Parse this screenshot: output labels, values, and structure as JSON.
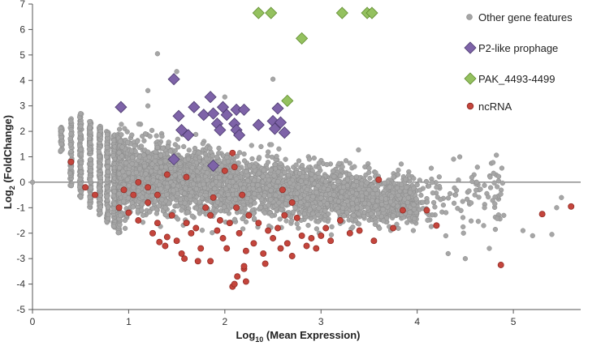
{
  "colors": {
    "other": "#a6a6a6",
    "other_stroke": "#8c8c8c",
    "p2": "#7e63a8",
    "p2_stroke": "#4b3a6e",
    "pak": "#94c15f",
    "pak_stroke": "#5e8a2d",
    "ncrna": "#c4453c",
    "ncrna_stroke": "#8a2620"
  },
  "axes": {
    "x_title_main": "Log",
    "x_title_sub": "10",
    "x_title_rest": " (Mean Expression)",
    "y_title_main": "Log",
    "y_title_sub": "2",
    "y_title_rest": " (FoldChange)"
  },
  "legend": {
    "other": "Other gene features",
    "p2": "P2-like prophage",
    "pak": "PAK_4493-4499",
    "ncrna": "ncRNA"
  },
  "chart_data": {
    "type": "scatter",
    "xlim": [
      0,
      5.7
    ],
    "ylim": [
      -5,
      7
    ],
    "x_ticks": [
      0,
      1,
      2,
      3,
      4,
      5
    ],
    "y_ticks": [
      -5,
      -4,
      -3,
      -2,
      -1,
      0,
      1,
      2,
      3,
      4,
      5,
      6,
      7
    ],
    "grid": false,
    "legend_position": "top-right",
    "series": [
      {
        "name": "Other gene features",
        "marker": "circle",
        "density_description": "dense cloud (~5000 points) spanning x 0.3–4.5, trending from y≈+1..-2.5 at low x toward y≈0..-2 at high x",
        "points": [
          [
            0.0,
            0.0
          ],
          [
            0.3,
            1.5
          ],
          [
            0.3,
            2.0
          ],
          [
            0.4,
            2.4
          ],
          [
            0.4,
            1.9
          ],
          [
            0.5,
            2.7
          ],
          [
            0.5,
            2.2
          ],
          [
            1.2,
            3.0
          ],
          [
            1.3,
            5.05
          ],
          [
            1.2,
            3.6
          ],
          [
            1.5,
            4.35
          ],
          [
            2.5,
            4.05
          ],
          [
            2.0,
            3.35
          ],
          [
            3.3,
            0.75
          ],
          [
            3.5,
            0.55
          ],
          [
            3.8,
            0.3
          ],
          [
            4.0,
            -0.1
          ],
          [
            4.2,
            -0.2
          ],
          [
            4.4,
            -0.5
          ],
          [
            4.6,
            -0.5
          ],
          [
            4.7,
            -1.0
          ],
          [
            4.9,
            -1.3
          ],
          [
            5.1,
            -1.9
          ],
          [
            5.4,
            -2.05
          ],
          [
            5.5,
            -0.6
          ],
          [
            5.45,
            -1.0
          ],
          [
            5.2,
            -2.1
          ],
          [
            4.75,
            -2.6
          ],
          [
            4.5,
            -3.0
          ],
          [
            4.1,
            -1.2
          ],
          [
            3.9,
            -0.8
          ]
        ]
      },
      {
        "name": "P2-like prophage",
        "marker": "diamond",
        "points": [
          [
            0.92,
            2.95
          ],
          [
            1.47,
            4.05
          ],
          [
            1.52,
            2.6
          ],
          [
            1.55,
            2.05
          ],
          [
            1.62,
            1.85
          ],
          [
            1.68,
            2.95
          ],
          [
            1.78,
            2.65
          ],
          [
            1.85,
            3.35
          ],
          [
            1.88,
            2.7
          ],
          [
            1.92,
            2.3
          ],
          [
            1.95,
            2.05
          ],
          [
            1.98,
            2.95
          ],
          [
            2.02,
            2.65
          ],
          [
            2.1,
            2.3
          ],
          [
            2.12,
            2.05
          ],
          [
            2.15,
            1.85
          ],
          [
            2.12,
            2.85
          ],
          [
            2.2,
            2.85
          ],
          [
            2.35,
            2.25
          ],
          [
            2.5,
            2.4
          ],
          [
            2.52,
            2.1
          ],
          [
            2.55,
            2.9
          ],
          [
            2.58,
            2.35
          ],
          [
            2.62,
            1.95
          ],
          [
            1.47,
            0.9
          ],
          [
            1.88,
            0.65
          ]
        ]
      },
      {
        "name": "PAK_4493-4499",
        "marker": "diamond",
        "points": [
          [
            2.35,
            6.65
          ],
          [
            2.48,
            6.65
          ],
          [
            2.8,
            5.65
          ],
          [
            2.65,
            3.2
          ],
          [
            3.22,
            6.65
          ],
          [
            3.48,
            6.65
          ],
          [
            3.53,
            6.65
          ]
        ]
      },
      {
        "name": "ncRNA",
        "marker": "circle",
        "points": [
          [
            0.4,
            0.8
          ],
          [
            0.55,
            -0.2
          ],
          [
            0.65,
            -0.5
          ],
          [
            0.9,
            -1.0
          ],
          [
            0.95,
            -0.3
          ],
          [
            1.0,
            -1.2
          ],
          [
            1.05,
            -0.5
          ],
          [
            1.1,
            -1.5
          ],
          [
            1.2,
            -0.8
          ],
          [
            1.25,
            -2.0
          ],
          [
            1.3,
            -1.6
          ],
          [
            1.32,
            -2.35
          ],
          [
            1.38,
            -2.5
          ],
          [
            1.4,
            -2.15
          ],
          [
            1.45,
            -1.3
          ],
          [
            1.5,
            -2.3
          ],
          [
            1.55,
            -2.8
          ],
          [
            1.58,
            -3.0
          ],
          [
            1.6,
            -1.6
          ],
          [
            1.65,
            -2.0
          ],
          [
            1.7,
            -1.8
          ],
          [
            1.72,
            -3.1
          ],
          [
            1.75,
            -2.6
          ],
          [
            1.8,
            -1.0
          ],
          [
            1.85,
            -1.3
          ],
          [
            1.88,
            -0.6
          ],
          [
            1.92,
            -1.9
          ],
          [
            1.95,
            -1.5
          ],
          [
            1.98,
            -2.2
          ],
          [
            2.02,
            -2.6
          ],
          [
            2.05,
            -1.6
          ],
          [
            2.1,
            0.6
          ],
          [
            2.12,
            -1.0
          ],
          [
            2.15,
            -2.0
          ],
          [
            2.18,
            -0.5
          ],
          [
            2.2,
            -3.4
          ],
          [
            2.22,
            -2.7
          ],
          [
            2.25,
            -1.3
          ],
          [
            2.3,
            -2.4
          ],
          [
            2.35,
            -1.6
          ],
          [
            2.4,
            -2.8
          ],
          [
            2.42,
            -3.2
          ],
          [
            2.45,
            -1.9
          ],
          [
            2.5,
            -2.2
          ],
          [
            2.55,
            -1.8
          ],
          [
            2.58,
            -2.6
          ],
          [
            2.62,
            -1.3
          ],
          [
            2.65,
            -2.4
          ],
          [
            2.7,
            -2.9
          ],
          [
            2.75,
            -1.4
          ],
          [
            2.8,
            -2.1
          ],
          [
            2.85,
            -2.5
          ],
          [
            2.9,
            -2.2
          ],
          [
            2.95,
            -2.6
          ],
          [
            3.0,
            -2.1
          ],
          [
            3.05,
            -1.8
          ],
          [
            3.1,
            -2.3
          ],
          [
            3.2,
            -1.5
          ],
          [
            3.3,
            -2.0
          ],
          [
            3.4,
            -1.9
          ],
          [
            3.55,
            -2.3
          ],
          [
            3.6,
            0.1
          ],
          [
            3.75,
            -1.8
          ],
          [
            3.85,
            -1.1
          ],
          [
            4.1,
            -1.1
          ],
          [
            4.2,
            -1.7
          ],
          [
            2.08,
            -4.1
          ],
          [
            2.1,
            -4.0
          ],
          [
            2.13,
            -3.7
          ],
          [
            2.2,
            -3.3
          ],
          [
            2.22,
            -3.9
          ],
          [
            1.85,
            -3.1
          ],
          [
            5.3,
            -1.25
          ],
          [
            5.6,
            -0.95
          ],
          [
            4.87,
            -3.25
          ],
          [
            2.08,
            1.15
          ],
          [
            2.0,
            0.45
          ],
          [
            1.6,
            0.2
          ],
          [
            1.4,
            0.3
          ],
          [
            1.1,
            0.0
          ],
          [
            1.2,
            -0.2
          ],
          [
            1.3,
            -0.5
          ],
          [
            2.6,
            -0.3
          ],
          [
            2.7,
            -0.8
          ]
        ]
      }
    ]
  }
}
